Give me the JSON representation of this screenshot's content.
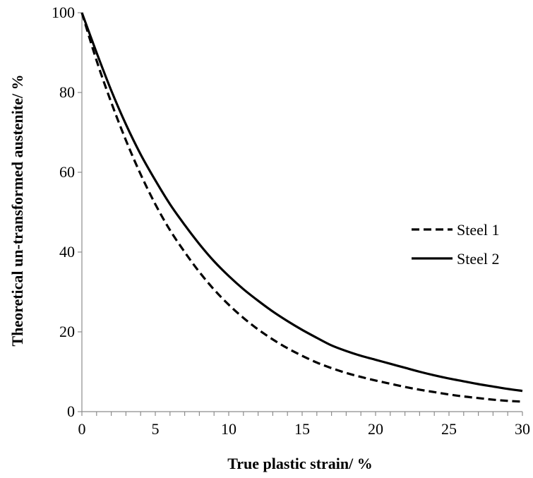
{
  "chart_data": {
    "type": "line",
    "title": "",
    "xlabel": "True plastic strain/ %",
    "ylabel": "Theoretical  un-transformed austenite/ %",
    "xlim": [
      0,
      30
    ],
    "ylim": [
      0,
      100
    ],
    "x_ticks": [
      0,
      5,
      10,
      15,
      20,
      25,
      30
    ],
    "y_ticks": [
      0,
      20,
      40,
      60,
      80,
      100
    ],
    "x_tick_labels": [
      "0",
      "5",
      "10",
      "15",
      "20",
      "25",
      "30"
    ],
    "y_tick_labels": [
      "0",
      "20",
      "40",
      "60",
      "80",
      "100"
    ],
    "x_minor_step": 1,
    "grid": false,
    "legend_position": "right",
    "series": [
      {
        "name": "Steel 1",
        "line_style": "dashed",
        "color": "#000000",
        "x": [
          0,
          1,
          2,
          3,
          4,
          5,
          6,
          7,
          8,
          9,
          10,
          11,
          12,
          13,
          14,
          15,
          16,
          17,
          18,
          19,
          20,
          21,
          22,
          23,
          24,
          25,
          26,
          27,
          28,
          29,
          30
        ],
        "y": [
          100,
          88,
          77.5,
          68,
          59.5,
          52,
          45.5,
          40,
          35,
          30.6,
          26.8,
          23.5,
          20.6,
          18.1,
          15.9,
          14,
          12.3,
          10.9,
          9.7,
          8.7,
          7.8,
          7,
          6.2,
          5.5,
          4.9,
          4.3,
          3.8,
          3.4,
          3,
          2.7,
          2.5
        ]
      },
      {
        "name": "Steel 2",
        "line_style": "solid",
        "color": "#000000",
        "x": [
          0,
          1,
          2,
          3,
          4,
          5,
          6,
          7,
          8,
          9,
          10,
          11,
          12,
          13,
          14,
          15,
          16,
          17,
          18,
          19,
          20,
          21,
          22,
          23,
          24,
          25,
          26,
          27,
          28,
          29,
          30
        ],
        "y": [
          100,
          90,
          80.5,
          72,
          64.5,
          58,
          52,
          46.8,
          42,
          37.7,
          34,
          30.7,
          27.8,
          25.1,
          22.7,
          20.5,
          18.5,
          16.6,
          15.2,
          14,
          13,
          12,
          11,
          10,
          9.1,
          8.3,
          7.6,
          6.9,
          6.3,
          5.7,
          5.2
        ]
      }
    ]
  }
}
